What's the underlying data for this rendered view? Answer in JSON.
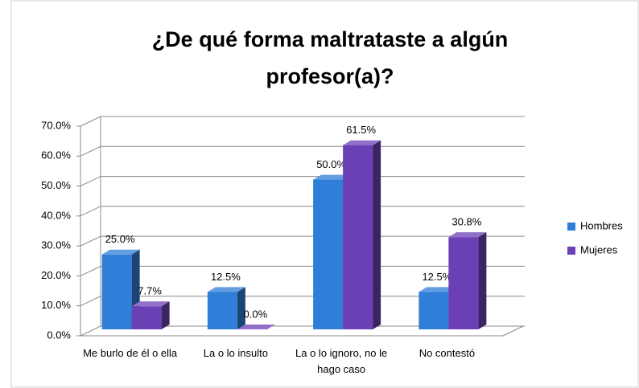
{
  "chart_data": {
    "type": "bar3d",
    "title": "¿De qué forma maltrataste a algún profesor(a)?",
    "categories": [
      "Me burlo de él o ella",
      "La o lo insulto",
      "La o lo ignoro, no le hago caso",
      "No contestó"
    ],
    "series": [
      {
        "name": "Hombres",
        "color": "#2f7ed8",
        "values": [
          25,
          12.5,
          50,
          12.5
        ],
        "value_labels": [
          "25.0%",
          "12.5%",
          "50.0%",
          "12.5%"
        ]
      },
      {
        "name": "Mujeres",
        "color": "#6b40b5",
        "values": [
          7.7,
          0,
          61.5,
          30.8
        ],
        "value_labels": [
          "7.7%",
          "0.0%",
          "61.5%",
          "30.8%"
        ]
      }
    ],
    "ylim": [
      0,
      70
    ],
    "yticks": [
      {
        "value": 0,
        "label": "0.0%"
      },
      {
        "value": 10,
        "label": "10.0%"
      },
      {
        "value": 20,
        "label": "20.0%"
      },
      {
        "value": 30,
        "label": "30.0%"
      },
      {
        "value": 40,
        "label": "40.0%"
      },
      {
        "value": 50,
        "label": "50.0%"
      },
      {
        "value": 60,
        "label": "60.0%"
      },
      {
        "value": 70,
        "label": "70.0%"
      }
    ],
    "grid": true,
    "legend": "right"
  }
}
